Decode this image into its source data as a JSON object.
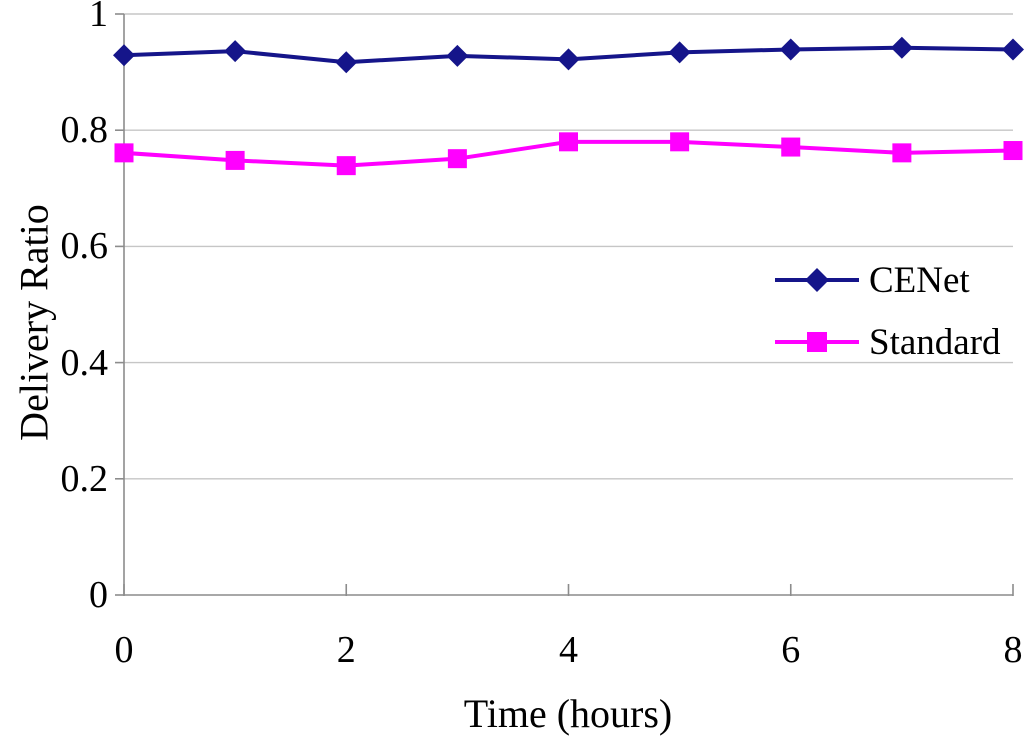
{
  "chart_data": {
    "type": "line",
    "title": "",
    "xlabel": "Time (hours)",
    "ylabel": "Delivery Ratio",
    "xlim": [
      0,
      8
    ],
    "ylim": [
      0,
      1
    ],
    "x": [
      0,
      1,
      2,
      3,
      4,
      5,
      6,
      7,
      8
    ],
    "xticks": [
      "0",
      "2",
      "4",
      "6",
      "8"
    ],
    "yticks": [
      "1",
      "0.8",
      "0.6",
      "0.4",
      "0.2",
      "0"
    ],
    "grid": true,
    "gridline_color": "#c6c6c6",
    "axis_color": "#8c8c8c",
    "legend_position": "middle-right",
    "series": [
      {
        "name": "CENet",
        "color": "#15158a",
        "marker": "diamond",
        "values": [
          0.929,
          0.936,
          0.917,
          0.928,
          0.922,
          0.934,
          0.939,
          0.942,
          0.939
        ]
      },
      {
        "name": "Standard",
        "color": "#ff00ff",
        "marker": "square",
        "values": [
          0.761,
          0.748,
          0.739,
          0.751,
          0.78,
          0.78,
          0.771,
          0.761,
          0.765
        ]
      }
    ]
  }
}
